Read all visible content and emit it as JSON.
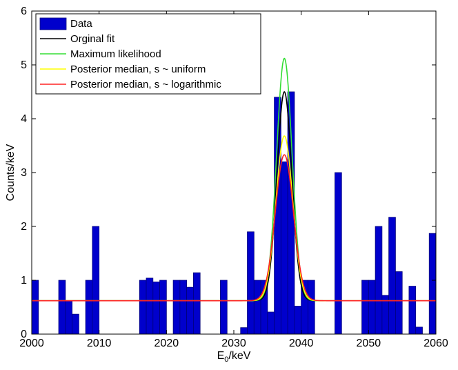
{
  "chart_data": {
    "type": "bar",
    "xlabel": "E",
    "xlabel_subscript": "0",
    "xlabel_unit": "/keV",
    "ylabel": "Counts/keV",
    "xlim": [
      2000,
      2060
    ],
    "ylim": [
      0,
      6
    ],
    "xticks": [
      "2000",
      "2010",
      "2020",
      "2030",
      "2040",
      "2050",
      "2060"
    ],
    "yticks": [
      "0",
      "1",
      "2",
      "3",
      "4",
      "5",
      "6"
    ],
    "grid": false,
    "legend_position": "top-left",
    "bars": {
      "name": "Data",
      "color": "#0000cc",
      "bin_width": 1,
      "x": [
        2000.5,
        2004.5,
        2005.5,
        2006.5,
        2008.5,
        2009.5,
        2016.5,
        2017.5,
        2018.5,
        2019.5,
        2021.5,
        2022.5,
        2023.5,
        2024.5,
        2028.5,
        2031.5,
        2032.5,
        2033.5,
        2034.5,
        2035.5,
        2036.5,
        2037.5,
        2038.5,
        2039.5,
        2040.5,
        2041.5,
        2045.5,
        2049.5,
        2050.5,
        2051.5,
        2052.5,
        2053.5,
        2054.5,
        2056.5,
        2057.5,
        2059.5
      ],
      "values": [
        1.0,
        1.0,
        0.62,
        0.37,
        1.0,
        2.0,
        1.0,
        1.04,
        0.97,
        1.0,
        1.0,
        1.0,
        0.87,
        1.14,
        1.0,
        0.12,
        1.9,
        1.0,
        1.0,
        0.41,
        4.4,
        3.2,
        4.5,
        0.52,
        1.0,
        1.0,
        3.0,
        1.0,
        1.0,
        2.0,
        0.72,
        2.17,
        1.16,
        0.89,
        0.13,
        1.87
      ]
    },
    "series": [
      {
        "name": "Orginal fit",
        "color": "#000000",
        "background": 0.62,
        "peak": 4.5,
        "mean": 2037.5,
        "sigma": 1.1,
        "xmin": 2000,
        "xmax": 2060
      },
      {
        "name": "Maximum likelihood",
        "color": "#33dd33",
        "background": 0.62,
        "peak": 5.12,
        "mean": 2037.5,
        "sigma": 1.15,
        "xmin": 2000,
        "xmax": 2043
      },
      {
        "name": "Posterior median, s ~ uniform",
        "color": "#ffff00",
        "background": 0.62,
        "peak": 3.68,
        "mean": 2037.5,
        "sigma": 1.25,
        "xmin": 2000,
        "xmax": 2060
      },
      {
        "name": "Posterior median, s ~ logarithmic",
        "color": "#ff2222",
        "background": 0.62,
        "peak": 3.33,
        "mean": 2037.5,
        "sigma": 1.35,
        "xmin": 2000,
        "xmax": 2060
      }
    ]
  }
}
